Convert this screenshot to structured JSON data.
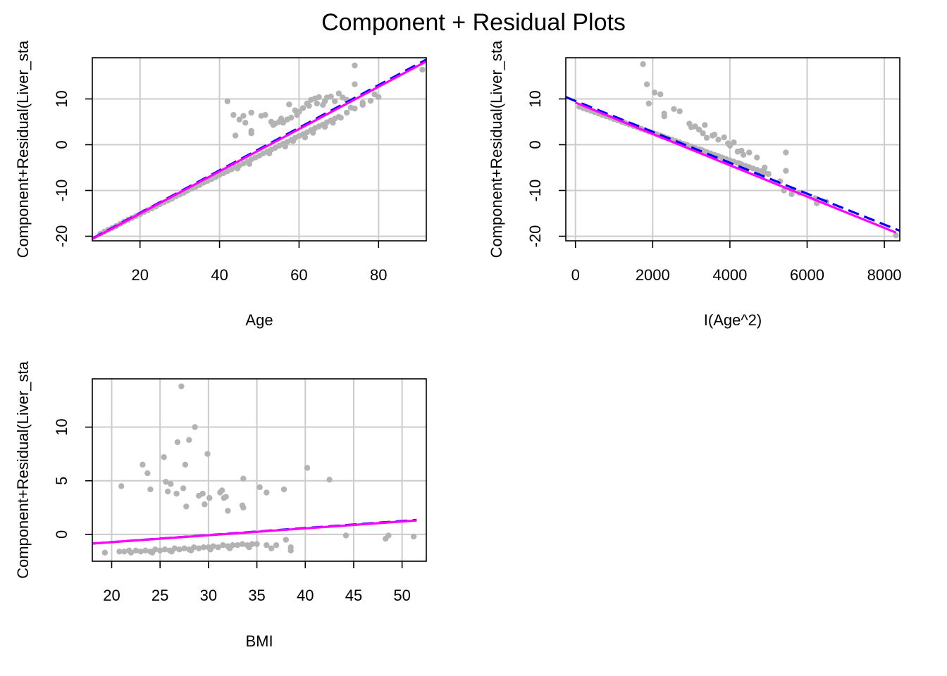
{
  "title": "Component + Residual Plots",
  "colors": {
    "points": "#b3b3b3",
    "grid": "#cccccc",
    "linear_fit": "#0000ff",
    "smooth": "#ff00ff",
    "frame": "#000000"
  },
  "chart_data": [
    {
      "type": "scatter",
      "xlabel": "Age",
      "ylabel": "Component+Residual(Liver_sta",
      "xlim": [
        8,
        92
      ],
      "ylim": [
        -21,
        19
      ],
      "xticks": [
        20,
        40,
        60,
        80
      ],
      "yticks": [
        -20,
        -10,
        0,
        10
      ],
      "grid": true,
      "fit_line": {
        "style": "dashed",
        "x": [
          8,
          92
        ],
        "y": [
          -20.5,
          18.6
        ]
      },
      "smooth_line": {
        "x": [
          8,
          92
        ],
        "y": [
          -20.6,
          18.2
        ]
      },
      "points": [
        [
          10,
          -19.5
        ],
        [
          11,
          -19
        ],
        [
          12,
          -18.6
        ],
        [
          13,
          -18.2
        ],
        [
          14,
          -17.8
        ],
        [
          15,
          -17.3
        ],
        [
          16,
          -16.8
        ],
        [
          17,
          -16.4
        ],
        [
          18,
          -16
        ],
        [
          19,
          -15.6
        ],
        [
          20,
          -15.2
        ],
        [
          21,
          -14.7
        ],
        [
          22,
          -14.3
        ],
        [
          23,
          -13.9
        ],
        [
          24,
          -13.5
        ],
        [
          25,
          -13
        ],
        [
          26,
          -12.6
        ],
        [
          27,
          -12.2
        ],
        [
          28,
          -11.8
        ],
        [
          29,
          -11.3
        ],
        [
          30,
          -10.9
        ],
        [
          31,
          -10.5
        ],
        [
          32,
          -10
        ],
        [
          33,
          -9.6
        ],
        [
          34,
          -9.2
        ],
        [
          35,
          -8.8
        ],
        [
          36,
          -8.3
        ],
        [
          37,
          -7.9
        ],
        [
          38,
          -7.5
        ],
        [
          39,
          -7.1
        ],
        [
          40,
          -6.6
        ],
        [
          41,
          -6.2
        ],
        [
          42,
          -5.8
        ],
        [
          43,
          -5.4
        ],
        [
          44,
          -4.9
        ],
        [
          45,
          -4.5
        ],
        [
          46,
          -4.1
        ],
        [
          47,
          -3.7
        ],
        [
          48,
          -3.2
        ],
        [
          49,
          -2.8
        ],
        [
          50,
          -2.4
        ],
        [
          51,
          -1.9
        ],
        [
          52,
          -1.5
        ],
        [
          53,
          -1.1
        ],
        [
          54,
          -0.7
        ],
        [
          55,
          -0.2
        ],
        [
          56,
          0.2
        ],
        [
          57,
          0.6
        ],
        [
          58,
          1
        ],
        [
          59,
          1.5
        ],
        [
          60,
          1.9
        ],
        [
          61,
          2.3
        ],
        [
          62,
          2.7
        ],
        [
          63,
          3.2
        ],
        [
          64,
          3.6
        ],
        [
          65,
          4
        ],
        [
          66,
          4.4
        ],
        [
          67,
          4.9
        ],
        [
          68,
          5.3
        ],
        [
          69,
          5.7
        ],
        [
          70,
          6.1
        ],
        [
          72,
          7
        ],
        [
          74,
          7.9
        ],
        [
          76,
          8.7
        ],
        [
          78,
          9.6
        ],
        [
          80,
          10.4
        ],
        [
          47.5,
          -4.2
        ],
        [
          52.5,
          -1.9
        ],
        [
          56.5,
          -0.4
        ],
        [
          61.5,
          1.6
        ],
        [
          66.5,
          3.9
        ],
        [
          44.5,
          -5.2
        ],
        [
          58.5,
          0.8
        ],
        [
          63.5,
          2.6
        ],
        [
          68.5,
          4.8
        ],
        [
          70.5,
          5.9
        ],
        [
          42,
          9.5
        ],
        [
          43.5,
          6.5
        ],
        [
          44,
          2
        ],
        [
          45,
          5.5
        ],
        [
          46,
          6.3
        ],
        [
          46.5,
          4.8
        ],
        [
          48,
          7
        ],
        [
          48,
          3
        ],
        [
          48,
          2.5
        ],
        [
          50.5,
          6.3
        ],
        [
          51.5,
          6.5
        ],
        [
          53,
          5
        ],
        [
          53.5,
          4.3
        ],
        [
          54,
          4.6
        ],
        [
          55,
          5
        ],
        [
          55.5,
          5.7
        ],
        [
          56,
          4.8
        ],
        [
          57,
          5.5
        ],
        [
          57.5,
          8.8
        ],
        [
          58,
          5.9
        ],
        [
          59,
          7.5
        ],
        [
          59.5,
          6.5
        ],
        [
          60,
          7.2
        ],
        [
          61,
          8
        ],
        [
          62,
          9
        ],
        [
          62.5,
          8.5
        ],
        [
          63,
          9.8
        ],
        [
          64,
          10.1
        ],
        [
          64.5,
          9
        ],
        [
          65,
          10.4
        ],
        [
          66,
          8.7
        ],
        [
          66.5,
          9.5
        ],
        [
          67,
          10.3
        ],
        [
          68,
          10.5
        ],
        [
          69,
          9.5
        ],
        [
          70,
          11.2
        ],
        [
          71,
          10.3
        ],
        [
          72,
          9.8
        ],
        [
          73,
          8.1
        ],
        [
          74,
          13.2
        ],
        [
          74,
          17.3
        ],
        [
          76,
          9.2
        ],
        [
          79,
          11
        ],
        [
          91,
          16.4
        ]
      ]
    },
    {
      "type": "scatter",
      "xlabel": "I(Age^2)",
      "ylabel": "Component+Residual(Liver_sta",
      "xlim": [
        -250,
        8400
      ],
      "ylim": [
        -21,
        19
      ],
      "xticks": [
        0,
        2000,
        4000,
        6000,
        8000
      ],
      "yticks": [
        -20,
        -10,
        0,
        10
      ],
      "grid": true,
      "fit_line": {
        "style": "dashed",
        "x": [
          -250,
          8400
        ],
        "y": [
          10.4,
          -18.8
        ]
      },
      "smooth_line": {
        "x": [
          0,
          8300
        ],
        "y": [
          9.2,
          -19.2
        ]
      },
      "points": [
        [
          100,
          8.3
        ],
        [
          200,
          8
        ],
        [
          300,
          7.7
        ],
        [
          400,
          7.4
        ],
        [
          500,
          7.1
        ],
        [
          600,
          6.8
        ],
        [
          700,
          6.5
        ],
        [
          800,
          6.2
        ],
        [
          900,
          5.9
        ],
        [
          1000,
          5.6
        ],
        [
          1100,
          5.3
        ],
        [
          1200,
          5
        ],
        [
          1300,
          4.7
        ],
        [
          1400,
          4.4
        ],
        [
          1500,
          4.1
        ],
        [
          1600,
          3.8
        ],
        [
          1700,
          3.5
        ],
        [
          1800,
          3.2
        ],
        [
          1900,
          2.9
        ],
        [
          2000,
          2.6
        ],
        [
          2100,
          2.3
        ],
        [
          2200,
          2
        ],
        [
          2300,
          1.7
        ],
        [
          2400,
          1.4
        ],
        [
          2500,
          1.1
        ],
        [
          2600,
          0.8
        ],
        [
          2700,
          0.5
        ],
        [
          2800,
          0.2
        ],
        [
          2900,
          -0.1
        ],
        [
          3000,
          -0.4
        ],
        [
          3100,
          -0.7
        ],
        [
          3200,
          -1
        ],
        [
          3300,
          -1.3
        ],
        [
          3400,
          -1.6
        ],
        [
          3500,
          -1.9
        ],
        [
          3600,
          -2.2
        ],
        [
          3700,
          -2.5
        ],
        [
          3800,
          -2.8
        ],
        [
          3900,
          -3.1
        ],
        [
          4000,
          -3.4
        ],
        [
          4100,
          -3.7
        ],
        [
          4200,
          -4
        ],
        [
          4300,
          -4.3
        ],
        [
          4400,
          -4.6
        ],
        [
          4500,
          -4.9
        ],
        [
          4600,
          -5.2
        ],
        [
          4700,
          -5.5
        ],
        [
          4800,
          -5.8
        ],
        [
          4900,
          -6.1
        ],
        [
          5000,
          -6.4
        ],
        [
          5300,
          -8
        ],
        [
          5600,
          -9.9
        ],
        [
          5800,
          -10.5
        ],
        [
          6200,
          -11.7
        ],
        [
          6500,
          -12.5
        ],
        [
          8300,
          -19.8
        ],
        [
          450,
          7.4
        ],
        [
          1250,
          4.9
        ],
        [
          2250,
          1.8
        ],
        [
          3250,
          -1.1
        ],
        [
          4250,
          -4.1
        ],
        [
          1750,
          17.6
        ],
        [
          1850,
          13.2
        ],
        [
          1900,
          9
        ],
        [
          2050,
          11.4
        ],
        [
          2200,
          11
        ],
        [
          2300,
          6.8
        ],
        [
          2300,
          6.2
        ],
        [
          2550,
          7.8
        ],
        [
          2700,
          7.3
        ],
        [
          2950,
          4.6
        ],
        [
          3000,
          3.8
        ],
        [
          3100,
          4
        ],
        [
          3200,
          3.3
        ],
        [
          3300,
          2.5
        ],
        [
          3350,
          4.3
        ],
        [
          3400,
          1.5
        ],
        [
          3550,
          2
        ],
        [
          3600,
          2.2
        ],
        [
          3700,
          1.1
        ],
        [
          3850,
          1.6
        ],
        [
          3950,
          0.3
        ],
        [
          4000,
          -0.2
        ],
        [
          4100,
          0.5
        ],
        [
          4200,
          -1.5
        ],
        [
          4300,
          -1.3
        ],
        [
          4350,
          -2.2
        ],
        [
          4500,
          -1.7
        ],
        [
          4700,
          -2.8
        ],
        [
          4900,
          -5
        ],
        [
          5400,
          -10
        ],
        [
          5450,
          -1.7
        ],
        [
          5450,
          -5.7
        ],
        [
          5600,
          -10.8
        ],
        [
          6250,
          -12.8
        ]
      ]
    },
    {
      "type": "scatter",
      "xlabel": "BMI",
      "ylabel": "Component+Residual(Liver_sta",
      "xlim": [
        18,
        52.5
      ],
      "ylim": [
        -2.5,
        14.5
      ],
      "xticks": [
        20,
        25,
        30,
        35,
        40,
        45,
        50
      ],
      "yticks": [
        0,
        5,
        10
      ],
      "grid": true,
      "fit_line": {
        "style": "dashed",
        "x": [
          18,
          51.5
        ],
        "y": [
          -0.85,
          1.35
        ]
      },
      "smooth_line": {
        "x": [
          18,
          51.5
        ],
        "y": [
          -0.85,
          1.3
        ]
      },
      "points": [
        [
          19.3,
          -1.7
        ],
        [
          20.8,
          -1.6
        ],
        [
          21.3,
          -1.6
        ],
        [
          21.8,
          -1.5
        ],
        [
          22.5,
          -1.5
        ],
        [
          23,
          -1.6
        ],
        [
          23.5,
          -1.5
        ],
        [
          24,
          -1.6
        ],
        [
          24.5,
          -1.4
        ],
        [
          25,
          -1.5
        ],
        [
          25.5,
          -1.4
        ],
        [
          26,
          -1.5
        ],
        [
          26.5,
          -1.3
        ],
        [
          27,
          -1.4
        ],
        [
          27.5,
          -1.3
        ],
        [
          28,
          -1.4
        ],
        [
          28.5,
          -1.2
        ],
        [
          29,
          -1.3
        ],
        [
          29.5,
          -1.2
        ],
        [
          30,
          -1.2
        ],
        [
          30.5,
          -1.1
        ],
        [
          31,
          -1.2
        ],
        [
          31.5,
          -1
        ],
        [
          32,
          -1.1
        ],
        [
          32.5,
          -1
        ],
        [
          33,
          -1
        ],
        [
          33.5,
          -0.9
        ],
        [
          34,
          -1
        ],
        [
          34.5,
          -0.9
        ],
        [
          35,
          -0.9
        ],
        [
          36,
          -1
        ],
        [
          37,
          -1
        ],
        [
          38,
          -0.5
        ],
        [
          38.5,
          -1.2
        ],
        [
          44.2,
          -0.1
        ],
        [
          48.3,
          -0.4
        ],
        [
          48.6,
          -0.1
        ],
        [
          51.2,
          -0.2
        ],
        [
          22,
          -1.7
        ],
        [
          24.2,
          -1.7
        ],
        [
          26.2,
          -1.6
        ],
        [
          28.2,
          -1.5
        ],
        [
          30.2,
          -1.4
        ],
        [
          32.2,
          -1.3
        ],
        [
          34.2,
          -1.2
        ],
        [
          36.5,
          -1.3
        ],
        [
          38.5,
          -1.5
        ],
        [
          21,
          4.5
        ],
        [
          23.2,
          6.5
        ],
        [
          23.7,
          5.7
        ],
        [
          24,
          4.2
        ],
        [
          25.4,
          7.2
        ],
        [
          25.6,
          4.9
        ],
        [
          25.8,
          4
        ],
        [
          26.1,
          4.7
        ],
        [
          26.7,
          3.8
        ],
        [
          26.8,
          8.6
        ],
        [
          27.2,
          13.8
        ],
        [
          27.4,
          4.3
        ],
        [
          27.6,
          6.5
        ],
        [
          27.7,
          2.6
        ],
        [
          28,
          8.8
        ],
        [
          28.6,
          10
        ],
        [
          29,
          3.6
        ],
        [
          29.4,
          3.8
        ],
        [
          29.6,
          2.8
        ],
        [
          29.9,
          7.5
        ],
        [
          30.1,
          3.4
        ],
        [
          31.2,
          3.9
        ],
        [
          31.4,
          4.1
        ],
        [
          31.6,
          3.4
        ],
        [
          31.8,
          3.5
        ],
        [
          32,
          2.2
        ],
        [
          33.5,
          2.7
        ],
        [
          33.6,
          5.2
        ],
        [
          33.6,
          2.5
        ],
        [
          35.3,
          4.4
        ],
        [
          36,
          3.9
        ],
        [
          37.8,
          4.2
        ],
        [
          40.2,
          6.2
        ],
        [
          42.5,
          5.1
        ]
      ]
    }
  ]
}
